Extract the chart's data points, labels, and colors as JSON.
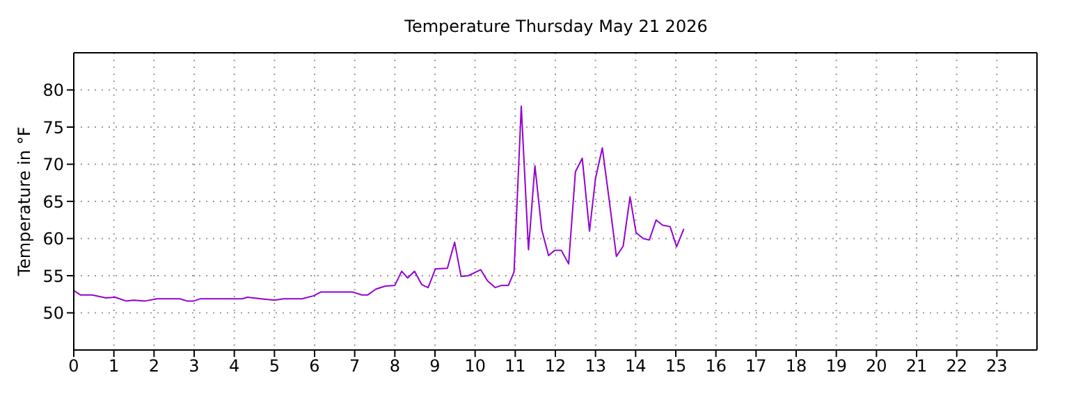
{
  "chart_data": {
    "type": "line",
    "title": "Temperature Thursday May 21 2026",
    "ylabel": "Temperature in °F",
    "x": [
      0,
      0.17,
      0.46,
      0.8,
      1.03,
      1.3,
      1.49,
      1.78,
      2.07,
      2.64,
      2.82,
      2.99,
      3.16,
      4.2,
      4.33,
      4.66,
      5.0,
      5.23,
      5.69,
      5.98,
      6.15,
      6.95,
      7.18,
      7.32,
      7.53,
      7.76,
      8.0,
      8.17,
      8.32,
      8.49,
      8.67,
      8.83,
      9.01,
      9.31,
      9.49,
      9.65,
      9.83,
      10.14,
      10.31,
      10.5,
      10.66,
      10.83,
      10.97,
      11.15,
      11.33,
      11.49,
      11.66,
      11.83,
      11.98,
      12.15,
      12.33,
      12.5,
      12.67,
      12.85,
      13.0,
      13.17,
      13.35,
      13.52,
      13.69,
      13.86,
      14.01,
      14.19,
      14.34,
      14.51,
      14.67,
      14.86,
      15.02,
      15.2
    ],
    "series": [
      {
        "color": "#9400d3",
        "values": [
          53.0,
          52.4,
          52.4,
          52.0,
          52.1,
          51.6,
          51.7,
          51.6,
          51.9,
          51.9,
          51.6,
          51.6,
          51.9,
          51.9,
          52.1,
          51.9,
          51.7,
          51.9,
          51.9,
          52.3,
          52.8,
          52.8,
          52.4,
          52.4,
          53.2,
          53.6,
          53.7,
          55.6,
          54.7,
          55.6,
          53.8,
          53.4,
          55.9,
          56.0,
          59.5,
          54.9,
          55.0,
          55.8,
          54.3,
          53.4,
          53.7,
          53.7,
          55.5,
          77.8,
          58.5,
          69.8,
          61.2,
          57.7,
          58.4,
          58.4,
          56.6,
          69.0,
          70.8,
          61.0,
          68.1,
          72.2,
          64.8,
          57.6,
          59.0,
          65.6,
          60.8,
          60.0,
          59.8,
          62.5,
          61.8,
          61.6,
          58.9,
          61.3
        ]
      }
    ],
    "xlim": [
      0,
      24
    ],
    "xticks": [
      0,
      1,
      2,
      3,
      4,
      5,
      6,
      7,
      8,
      9,
      10,
      11,
      12,
      13,
      14,
      15,
      16,
      17,
      18,
      19,
      20,
      21,
      22,
      23
    ],
    "ylim": [
      45,
      85
    ],
    "yticks": [
      50,
      55,
      60,
      65,
      70,
      75,
      80
    ],
    "grid": true,
    "marker": "none",
    "line_style": "solid"
  }
}
